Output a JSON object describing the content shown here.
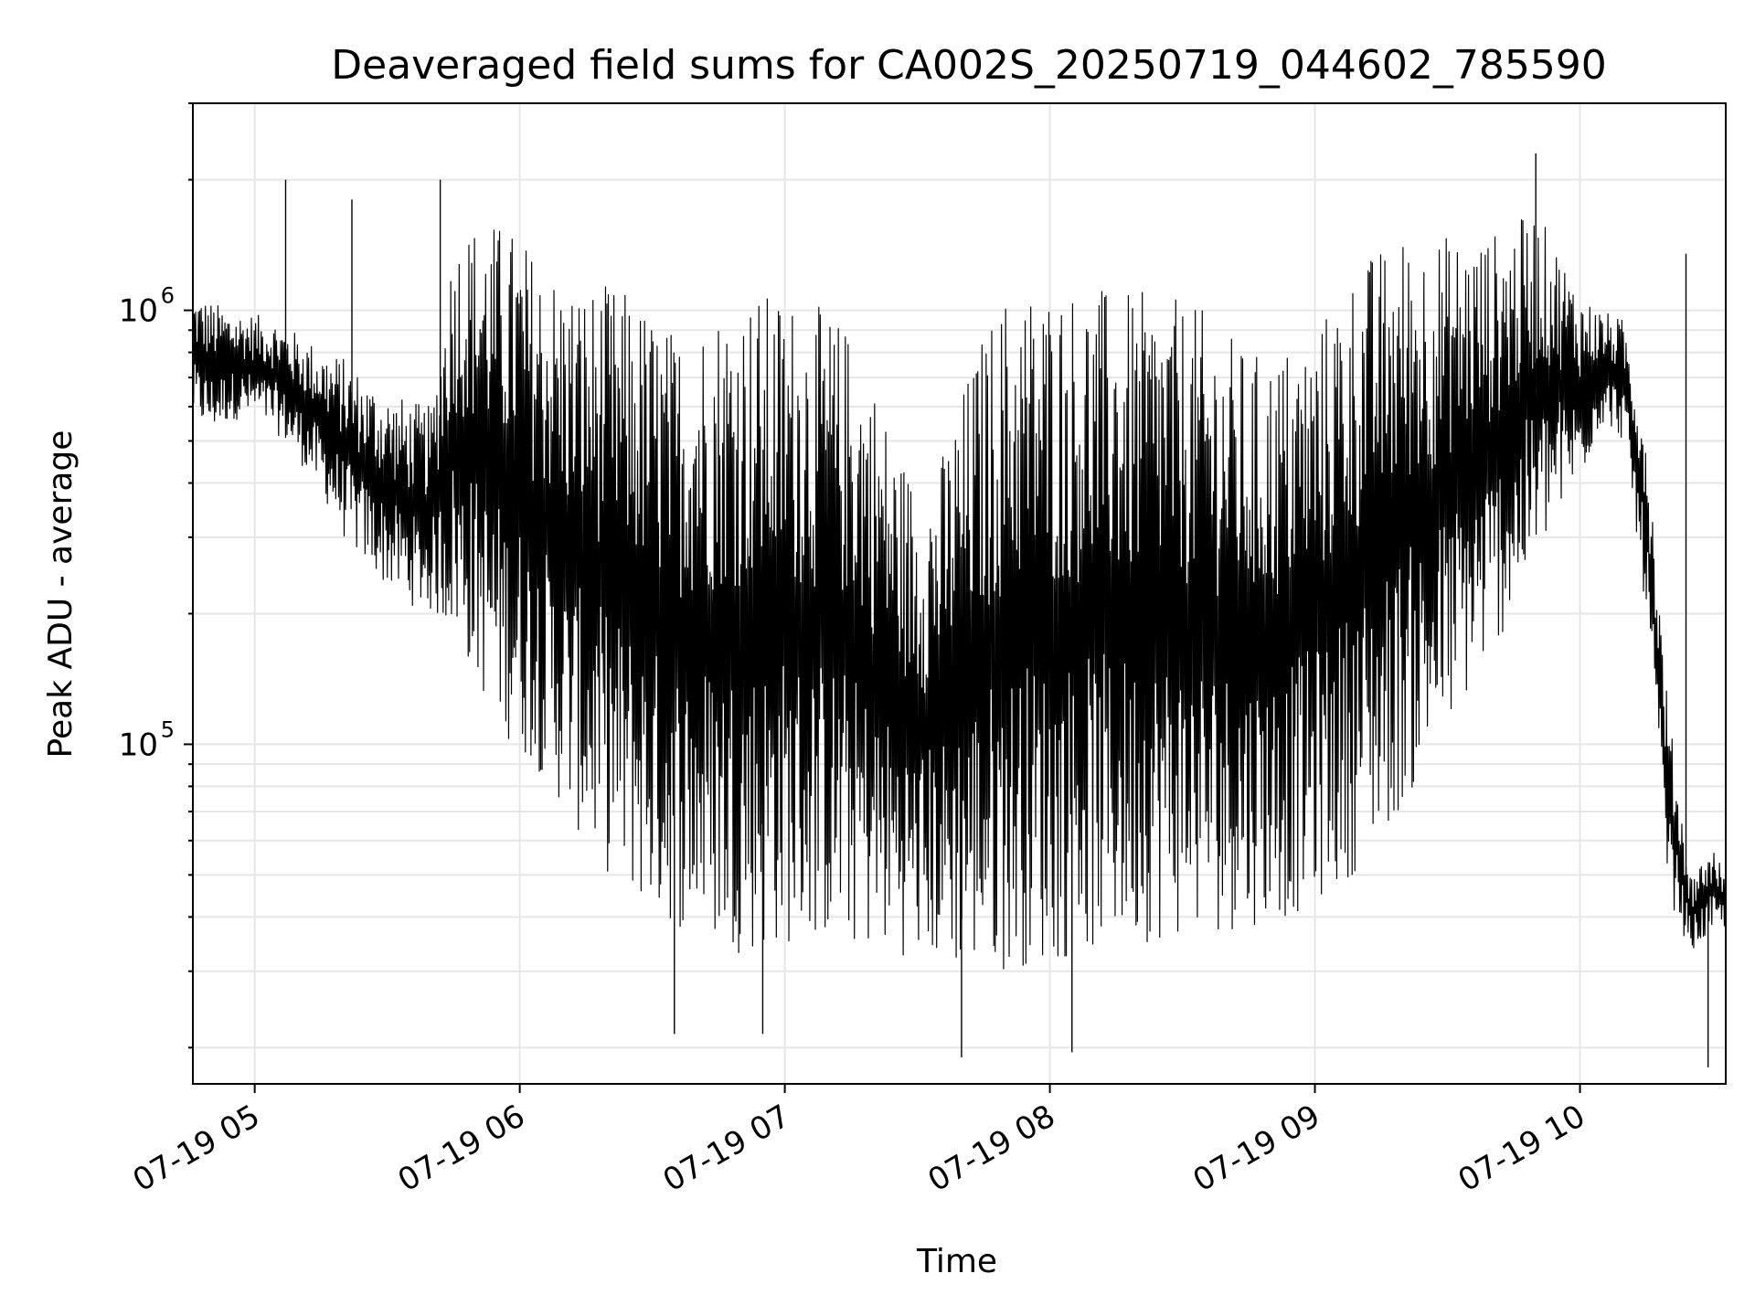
{
  "chart_data": {
    "type": "line",
    "title": "Deaveraged field sums for CA002S_20250719_044602_785590",
    "xlabel": "Time",
    "ylabel": "Peak ADU - average",
    "x_range": [
      "2025-07-19 04:46",
      "2025-07-19 10:33"
    ],
    "yscale": "log",
    "ylim": [
      16500,
      3000000
    ],
    "grid": true,
    "line_color": "#000000",
    "grid_color": "#e6e6e6",
    "x_ticks": [
      {
        "time": "2025-07-19 05:00",
        "label": "07-19 05"
      },
      {
        "time": "2025-07-19 06:00",
        "label": "07-19 06"
      },
      {
        "time": "2025-07-19 07:00",
        "label": "07-19 07"
      },
      {
        "time": "2025-07-19 08:00",
        "label": "07-19 08"
      },
      {
        "time": "2025-07-19 09:00",
        "label": "07-19 09"
      },
      {
        "time": "2025-07-19 10:00",
        "label": "07-19 10"
      }
    ],
    "y_ticks": [
      {
        "value": 100000,
        "base": "10",
        "exp": "5"
      },
      {
        "value": 1000000,
        "base": "10",
        "exp": "6"
      }
    ],
    "series": [
      {
        "x": [
          "2025-07-19 04:46",
          "2025-07-19 04:50",
          "2025-07-19 04:55",
          "2025-07-19 05:00",
          "2025-07-19 05:05",
          "2025-07-19 05:10",
          "2025-07-19 05:15",
          "2025-07-19 05:20",
          "2025-07-19 05:25",
          "2025-07-19 05:30",
          "2025-07-19 05:35",
          "2025-07-19 05:40",
          "2025-07-19 05:45",
          "2025-07-19 05:50",
          "2025-07-19 05:55",
          "2025-07-19 06:00",
          "2025-07-19 06:05",
          "2025-07-19 06:10",
          "2025-07-19 06:15",
          "2025-07-19 06:20",
          "2025-07-19 06:25",
          "2025-07-19 06:30",
          "2025-07-19 06:35",
          "2025-07-19 06:40",
          "2025-07-19 06:45",
          "2025-07-19 06:50",
          "2025-07-19 06:55",
          "2025-07-19 07:00",
          "2025-07-19 07:05",
          "2025-07-19 07:10",
          "2025-07-19 07:15",
          "2025-07-19 07:20",
          "2025-07-19 07:25",
          "2025-07-19 07:30",
          "2025-07-19 07:35",
          "2025-07-19 07:40",
          "2025-07-19 07:45",
          "2025-07-19 07:50",
          "2025-07-19 07:55",
          "2025-07-19 08:00",
          "2025-07-19 08:05",
          "2025-07-19 08:10",
          "2025-07-19 08:15",
          "2025-07-19 08:20",
          "2025-07-19 08:25",
          "2025-07-19 08:30",
          "2025-07-19 08:35",
          "2025-07-19 08:40",
          "2025-07-19 08:45",
          "2025-07-19 08:50",
          "2025-07-19 08:55",
          "2025-07-19 09:00",
          "2025-07-19 09:05",
          "2025-07-19 09:10",
          "2025-07-19 09:15",
          "2025-07-19 09:20",
          "2025-07-19 09:25",
          "2025-07-19 09:30",
          "2025-07-19 09:35",
          "2025-07-19 09:40",
          "2025-07-19 09:45",
          "2025-07-19 09:50",
          "2025-07-19 09:55",
          "2025-07-19 10:00",
          "2025-07-19 10:05",
          "2025-07-19 10:10",
          "2025-07-19 10:15",
          "2025-07-19 10:20",
          "2025-07-19 10:25",
          "2025-07-19 10:30",
          "2025-07-19 10:33"
        ],
        "low": [
          560000,
          520000,
          560000,
          560000,
          520000,
          450000,
          380000,
          300000,
          260000,
          230000,
          210000,
          200000,
          180000,
          140000,
          110000,
          95000,
          85000,
          70000,
          58000,
          50000,
          45000,
          40000,
          38000,
          36000,
          34000,
          33000,
          33000,
          34000,
          35000,
          35000,
          34000,
          33000,
          33000,
          32000,
          31000,
          30000,
          30000,
          30000,
          31000,
          31000,
          32000,
          33000,
          34000,
          35000,
          35000,
          36000,
          36000,
          37000,
          38000,
          39000,
          40000,
          43000,
          46000,
          52000,
          60000,
          72000,
          85000,
          105000,
          130000,
          160000,
          200000,
          260000,
          330000,
          400000,
          550000,
          500000,
          200000,
          45000,
          33000,
          37000,
          38000
        ],
        "high": [
          1100000,
          1050000,
          1000000,
          980000,
          950000,
          880000,
          820000,
          780000,
          700000,
          650000,
          620000,
          600000,
          1500000,
          1600000,
          1600000,
          1500000,
          1300000,
          1200000,
          1150000,
          1150000,
          1100000,
          1000000,
          900000,
          950000,
          1050000,
          1100000,
          1100000,
          1100000,
          1050000,
          1000000,
          900000,
          700000,
          500000,
          400000,
          450000,
          650000,
          900000,
          1100000,
          1150000,
          1150000,
          1150000,
          1150000,
          1100000,
          1100000,
          1100000,
          1050000,
          1000000,
          900000,
          800000,
          800000,
          850000,
          900000,
          1100000,
          1300000,
          1400000,
          1500000,
          1500000,
          1500000,
          1500000,
          1500000,
          1600000,
          1700000,
          1400000,
          1100000,
          1000000,
          950000,
          550000,
          120000,
          50000,
          58000,
          50000
        ],
        "spikes": [
          {
            "x": "2025-07-19 05:07",
            "y": 2000000
          },
          {
            "x": "2025-07-19 05:22",
            "y": 1800000
          },
          {
            "x": "2025-07-19 05:42",
            "y": 2000000
          },
          {
            "x": "2025-07-19 06:35",
            "y": 21500
          },
          {
            "x": "2025-07-19 06:55",
            "y": 21500
          },
          {
            "x": "2025-07-19 07:40",
            "y": 19000
          },
          {
            "x": "2025-07-19 08:05",
            "y": 19500
          },
          {
            "x": "2025-07-19 09:50",
            "y": 2300000
          },
          {
            "x": "2025-07-19 10:24",
            "y": 1350000
          },
          {
            "x": "2025-07-19 10:29",
            "y": 18000
          }
        ]
      }
    ]
  }
}
